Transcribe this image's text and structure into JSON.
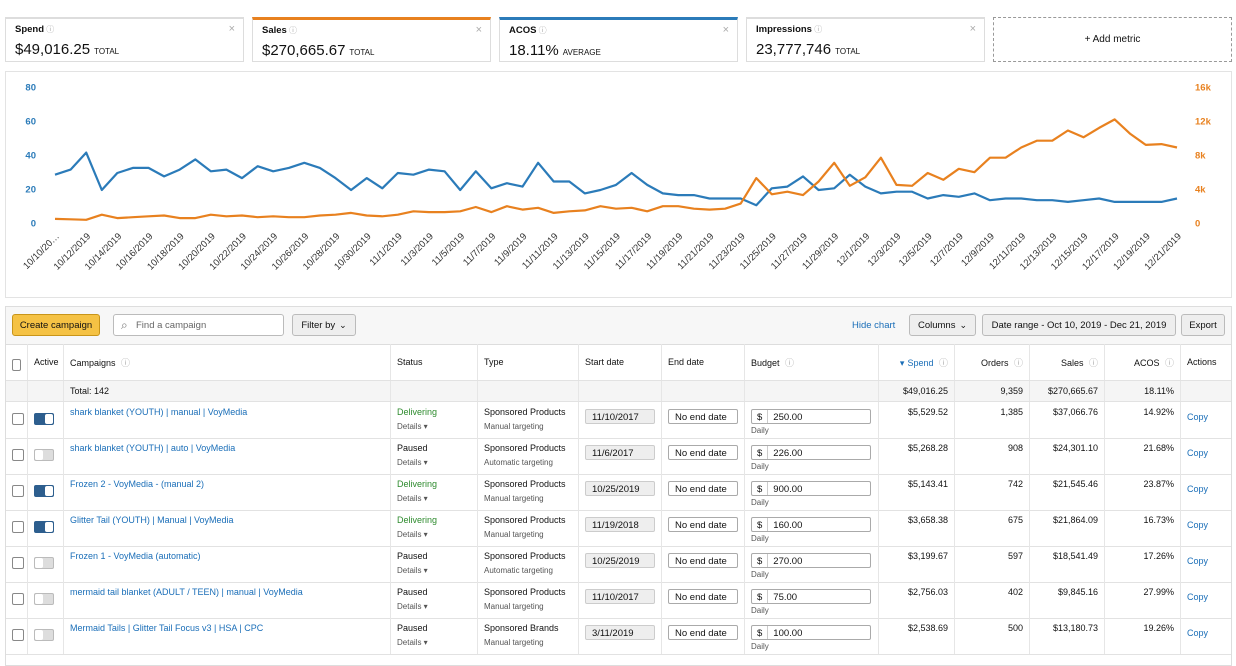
{
  "cards": [
    {
      "label": "Spend",
      "value": "$49,016.25",
      "unit": "TOTAL"
    },
    {
      "label": "Sales",
      "value": "$270,665.67",
      "unit": "TOTAL",
      "color": "#e8811f"
    },
    {
      "label": "ACOS",
      "value": "18.11%",
      "unit": "AVERAGE",
      "color": "#2b7bb9"
    },
    {
      "label": "Impressions",
      "value": "23,777,746",
      "unit": "TOTAL"
    }
  ],
  "add_metric": "+ Add metric",
  "chart_data": {
    "type": "line",
    "categories": [
      "10/10/20…",
      null,
      "10/12/2019",
      null,
      "10/14/2019",
      null,
      "10/16/2019",
      null,
      "10/18/2019",
      null,
      "10/20/2019",
      null,
      "10/22/2019",
      null,
      "10/24/2019",
      null,
      "10/26/2019",
      null,
      "10/28/2019",
      null,
      "10/30/2019",
      null,
      "11/1/2019",
      null,
      "11/3/2019",
      null,
      "11/5/2019",
      null,
      "11/7/2019",
      null,
      "11/9/2019",
      null,
      "11/11/2019",
      null,
      "11/13/2019",
      null,
      "11/15/2019",
      null,
      "11/17/2019",
      null,
      "11/19/2019",
      null,
      "11/21/2019",
      null,
      "11/23/2019",
      null,
      "11/25/2019",
      null,
      "11/27/2019",
      null,
      "11/29/2019",
      null,
      "12/1/2019",
      null,
      "12/3/2019",
      null,
      "12/5/2019",
      null,
      "12/7/2019",
      null,
      "12/9/2019",
      null,
      "12/11/2019",
      null,
      "12/13/2019",
      null,
      "12/15/2019",
      null,
      "12/17/2019",
      null,
      "12/19/2019",
      null,
      "12/21/2019"
    ],
    "series": [
      {
        "color": "#2b7bb9",
        "axis": "y",
        "values": [
          29,
          32,
          42,
          20,
          30,
          33,
          33,
          28,
          32,
          38,
          31,
          32,
          27,
          34,
          31,
          33,
          36,
          33,
          27,
          20,
          27,
          21,
          30,
          29,
          32,
          31,
          20,
          31,
          21,
          24,
          22,
          36,
          25,
          25,
          18,
          20,
          23,
          30,
          23,
          18,
          17,
          17,
          15,
          15,
          15,
          11,
          21,
          22,
          28,
          20,
          21,
          29,
          22,
          18,
          19,
          19,
          15,
          17,
          16,
          18,
          14,
          15,
          15,
          14,
          14,
          13,
          14,
          15,
          13,
          13,
          13,
          13,
          15
        ]
      },
      {
        "color": "#e8811f",
        "axis": "y2",
        "values": [
          600,
          550,
          500,
          1100,
          700,
          800,
          900,
          1000,
          700,
          700,
          1100,
          900,
          1000,
          800,
          900,
          800,
          800,
          1000,
          1100,
          1300,
          1000,
          900,
          1100,
          1500,
          1400,
          1400,
          1500,
          2000,
          1400,
          2100,
          1700,
          1900,
          1300,
          1500,
          1600,
          2100,
          1800,
          1900,
          1500,
          2100,
          2100,
          1800,
          1700,
          1800,
          2400,
          5400,
          3500,
          3800,
          3400,
          5000,
          7200,
          4500,
          5500,
          7800,
          4600,
          4500,
          6000,
          5200,
          6500,
          6100,
          7800,
          7800,
          9000,
          9800,
          9800,
          11000,
          10200,
          11300,
          12300,
          10600,
          9300,
          9400,
          9000
        ]
      }
    ],
    "ylim": [
      0,
      80
    ],
    "yticks": [
      0,
      20,
      40,
      60,
      80
    ],
    "y2lim": [
      0,
      16000
    ],
    "y2ticks": [
      {
        "value": 0,
        "label": "0"
      },
      {
        "value": 4000,
        "label": "4k"
      },
      {
        "value": 8000,
        "label": "8k"
      },
      {
        "value": 12000,
        "label": "12k"
      },
      {
        "value": 16000,
        "label": "16k"
      }
    ],
    "grid": false
  },
  "toolbar": {
    "create": "Create campaign",
    "search": "Find a campaign",
    "filter": "Filter by",
    "hide_chart": "Hide chart",
    "columns": "Columns",
    "date_range": "Date range - Oct 10, 2019 - Dec 21, 2019",
    "export": "Export"
  },
  "table": {
    "headers": [
      "Active",
      "Campaigns",
      "Status",
      "Type",
      "Start date",
      "End date",
      "Budget",
      "Spend",
      "Orders",
      "Sales",
      "ACOS",
      "Actions"
    ],
    "total": {
      "label": "Total: 142",
      "spend": "$49,016.25",
      "orders": "9,359",
      "sales": "$270,665.67",
      "acos": "18.11%"
    },
    "rows": [
      {
        "enabled": true,
        "name": "shark blanket (YOUTH) | manual | VoyMedia",
        "status": "Delivering",
        "details": "Details",
        "type": "Sponsored Products",
        "targeting": "Manual targeting",
        "start": "11/10/2017",
        "end": "No end date",
        "currency": "$",
        "budget": "250.00",
        "period": "Daily",
        "spend": "$5,529.52",
        "orders": "1,385",
        "sales": "$37,066.76",
        "acos": "14.92%",
        "action": "Copy"
      },
      {
        "enabled": false,
        "name": "shark blanket (YOUTH) | auto | VoyMedia",
        "status": "Paused",
        "details": "Details",
        "type": "Sponsored Products",
        "targeting": "Automatic targeting",
        "start": "11/6/2017",
        "end": "No end date",
        "currency": "$",
        "budget": "226.00",
        "period": "Daily",
        "spend": "$5,268.28",
        "orders": "908",
        "sales": "$24,301.10",
        "acos": "21.68%",
        "action": "Copy"
      },
      {
        "enabled": true,
        "name": "Frozen 2 - VoyMedia - (manual 2)",
        "status": "Delivering",
        "details": "Details",
        "type": "Sponsored Products",
        "targeting": "Manual targeting",
        "start": "10/25/2019",
        "end": "No end date",
        "currency": "$",
        "budget": "900.00",
        "period": "Daily",
        "spend": "$5,143.41",
        "orders": "742",
        "sales": "$21,545.46",
        "acos": "23.87%",
        "action": "Copy"
      },
      {
        "enabled": true,
        "name": "Glitter Tail (YOUTH) | Manual | VoyMedia",
        "status": "Delivering",
        "details": "Details",
        "type": "Sponsored Products",
        "targeting": "Manual targeting",
        "start": "11/19/2018",
        "end": "No end date",
        "currency": "$",
        "budget": "160.00",
        "period": "Daily",
        "spend": "$3,658.38",
        "orders": "675",
        "sales": "$21,864.09",
        "acos": "16.73%",
        "action": "Copy"
      },
      {
        "enabled": false,
        "name": "Frozen 1 - VoyMedia (automatic)",
        "status": "Paused",
        "details": "Details",
        "type": "Sponsored Products",
        "targeting": "Automatic targeting",
        "start": "10/25/2019",
        "end": "No end date",
        "currency": "$",
        "budget": "270.00",
        "period": "Daily",
        "spend": "$3,199.67",
        "orders": "597",
        "sales": "$18,541.49",
        "acos": "17.26%",
        "action": "Copy"
      },
      {
        "enabled": false,
        "name": "mermaid tail blanket (ADULT / TEEN) | manual | VoyMedia",
        "status": "Paused",
        "details": "Details",
        "type": "Sponsored Products",
        "targeting": "Manual targeting",
        "start": "11/10/2017",
        "end": "No end date",
        "currency": "$",
        "budget": "75.00",
        "period": "Daily",
        "spend": "$2,756.03",
        "orders": "402",
        "sales": "$9,845.16",
        "acos": "27.99%",
        "action": "Copy"
      },
      {
        "enabled": false,
        "name": "Mermaid Tails | Glitter Tail Focus v3 | HSA | CPC",
        "status": "Paused",
        "details": "Details",
        "type": "Sponsored Brands",
        "targeting": "Manual targeting",
        "start": "3/11/2019",
        "end": "No end date",
        "currency": "$",
        "budget": "100.00",
        "period": "Daily",
        "spend": "$2,538.69",
        "orders": "500",
        "sales": "$13,180.73",
        "acos": "19.26%",
        "action": "Copy"
      }
    ]
  }
}
